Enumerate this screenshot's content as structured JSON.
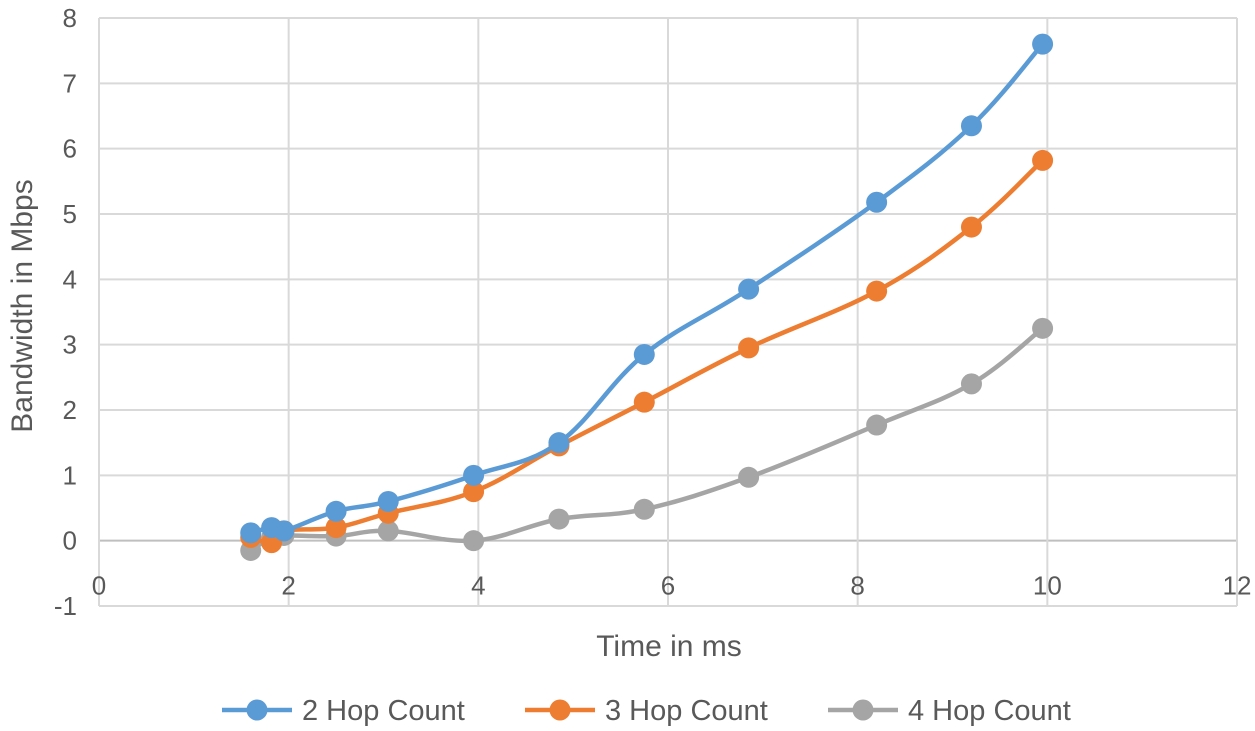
{
  "chart_data": {
    "type": "scatter",
    "title": "",
    "xlabel": "Time in ms",
    "ylabel": "Bandwidth in Mbps",
    "xlim": [
      0,
      12
    ],
    "ylim": [
      -1,
      8
    ],
    "xticks": [
      0,
      2,
      4,
      6,
      8,
      10,
      12
    ],
    "yticks": [
      -1,
      0,
      1,
      2,
      3,
      4,
      5,
      6,
      7,
      8
    ],
    "grid": true,
    "smooth_lines": true,
    "legend_position": "bottom",
    "series": [
      {
        "name": "2 Hop Count",
        "color": "#5b9bd5",
        "x": [
          1.6,
          1.82,
          1.95,
          2.5,
          3.05,
          3.95,
          4.85,
          5.75,
          6.85,
          8.2,
          9.2,
          9.95
        ],
        "y": [
          0.12,
          0.2,
          0.15,
          0.45,
          0.6,
          1.0,
          1.5,
          2.85,
          3.85,
          5.18,
          6.35,
          7.6
        ]
      },
      {
        "name": "3 Hop Count",
        "color": "#ed7d31",
        "x": [
          1.6,
          1.82,
          1.95,
          2.5,
          3.05,
          3.95,
          4.85,
          5.75,
          6.85,
          8.2,
          9.2,
          9.95
        ],
        "y": [
          0.05,
          -0.03,
          0.15,
          0.2,
          0.42,
          0.75,
          1.45,
          2.12,
          2.95,
          3.82,
          4.8,
          5.82
        ]
      },
      {
        "name": "4 Hop Count",
        "color": "#a5a5a5",
        "x": [
          1.6,
          1.82,
          1.95,
          2.5,
          3.05,
          3.95,
          4.85,
          5.75,
          6.85,
          8.2,
          9.2,
          9.95
        ],
        "y": [
          -0.15,
          0.05,
          0.08,
          0.07,
          0.15,
          0.0,
          0.33,
          0.48,
          0.97,
          1.77,
          2.4,
          3.25
        ]
      }
    ]
  }
}
